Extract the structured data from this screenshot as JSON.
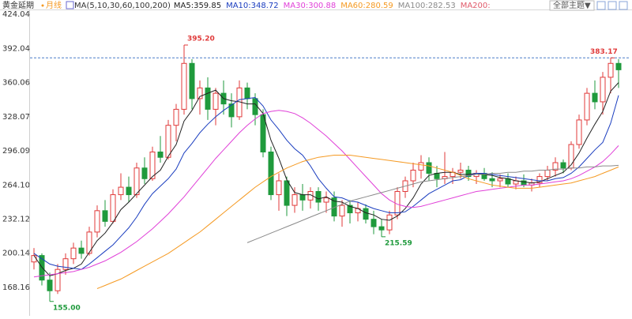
{
  "chart_data": {
    "type": "candlestick",
    "title": "黄金延期",
    "period": "月线",
    "ma_label": "MA(5,10,30,60,100,200)",
    "theme_button": "全部主题▼",
    "up_color": "#e03a3a",
    "down_color": "#1f9a3c",
    "ylim": [
      145.2,
      428.5
    ],
    "yticks": [
      424.04,
      392.04,
      360.06,
      328.07,
      296.09,
      {
        "value": 264.1,
        "label": "264.10"
      },
      232.12,
      200.14,
      168.16
    ],
    "grid": false,
    "open": [
      192,
      198,
      175,
      165,
      185,
      195,
      205,
      200,
      220,
      240,
      230,
      255,
      262,
      255,
      280,
      270,
      295,
      290,
      320,
      335,
      378,
      345,
      355,
      335,
      350,
      340,
      328,
      355,
      345,
      330,
      295,
      255,
      268,
      245,
      255,
      250,
      258,
      248,
      252,
      235,
      245,
      238,
      242,
      232,
      225,
      222,
      236,
      258,
      268,
      278,
      285,
      275,
      270,
      272,
      276,
      278,
      272,
      275,
      270,
      268,
      270,
      265,
      268,
      264,
      266,
      272,
      278,
      285,
      280,
      302,
      325,
      350,
      342,
      365,
      378
    ],
    "high": [
      205,
      200,
      182,
      190,
      200,
      210,
      212,
      225,
      245,
      250,
      260,
      275,
      272,
      285,
      290,
      300,
      310,
      325,
      340,
      395.2,
      382,
      362,
      365,
      355,
      362,
      350,
      362,
      360,
      350,
      335,
      300,
      275,
      272,
      262,
      265,
      262,
      262,
      258,
      258,
      250,
      250,
      248,
      246,
      240,
      232,
      240,
      262,
      272,
      285,
      292,
      290,
      282,
      295,
      280,
      285,
      282,
      278,
      280,
      276,
      274,
      275,
      272,
      274,
      270,
      275,
      282,
      290,
      288,
      305,
      330,
      355,
      362,
      370,
      383.17,
      382
    ],
    "low": [
      185,
      170,
      155,
      162,
      180,
      190,
      195,
      198,
      215,
      225,
      228,
      250,
      248,
      252,
      265,
      268,
      285,
      288,
      305,
      330,
      335,
      330,
      325,
      320,
      330,
      318,
      325,
      335,
      320,
      290,
      250,
      240,
      235,
      238,
      240,
      242,
      240,
      238,
      230,
      225,
      228,
      230,
      228,
      218,
      215.59,
      218,
      232,
      252,
      262,
      270,
      268,
      262,
      265,
      265,
      270,
      268,
      265,
      268,
      262,
      262,
      262,
      260,
      262,
      258,
      262,
      268,
      272,
      275,
      278,
      298,
      320,
      335,
      330,
      350,
      355
    ],
    "close": [
      198,
      175,
      165,
      185,
      195,
      205,
      200,
      220,
      240,
      230,
      255,
      262,
      255,
      280,
      270,
      295,
      290,
      320,
      335,
      378,
      345,
      355,
      335,
      350,
      340,
      328,
      355,
      345,
      330,
      295,
      255,
      268,
      245,
      255,
      250,
      258,
      248,
      252,
      235,
      245,
      238,
      242,
      232,
      225,
      222,
      236,
      258,
      268,
      278,
      285,
      275,
      270,
      272,
      276,
      278,
      272,
      275,
      270,
      268,
      270,
      265,
      268,
      264,
      266,
      272,
      278,
      285,
      280,
      302,
      325,
      350,
      342,
      365,
      378,
      372
    ],
    "series": [
      {
        "name": "MA5:359.85",
        "color": "#222222",
        "values": [
          198,
          187,
          179,
          181,
          184,
          186,
          190,
          201,
          212,
          219,
          229,
          241,
          248,
          256,
          264,
          272,
          278,
          291,
          302,
          324,
          334,
          347,
          350,
          353,
          345,
          343,
          342,
          340,
          340,
          331,
          306,
          289,
          269,
          257,
          255,
          255,
          251,
          253,
          249,
          248,
          244,
          242,
          238,
          236,
          232,
          231,
          235,
          242,
          252,
          265,
          273,
          275,
          276,
          276,
          274,
          274,
          275,
          274,
          273,
          271,
          270,
          268,
          267,
          266,
          267,
          270,
          273,
          276,
          283,
          294,
          308,
          321,
          333,
          352,
          360
        ]
      },
      {
        "name": "MA10:348.72",
        "color": "#1a3dbf",
        "values": [
          200,
          195,
          190,
          188,
          187,
          186,
          185,
          190,
          196,
          202,
          208,
          216,
          224,
          234,
          246,
          256,
          263,
          270,
          279,
          294,
          303,
          313,
          321,
          328,
          334,
          339,
          344,
          345,
          346,
          338,
          325,
          316,
          306,
          298,
          292,
          282,
          270,
          261,
          253,
          252,
          249,
          248,
          245,
          242,
          240,
          238,
          238,
          239,
          244,
          250,
          256,
          260,
          264,
          268,
          269,
          273,
          275,
          275,
          274,
          273,
          272,
          271,
          270,
          269,
          268,
          268,
          270,
          271,
          275,
          281,
          289,
          297,
          304,
          322,
          348
        ]
      },
      {
        "name": "MA30:300.88",
        "color": "#e040d8",
        "values": [
          178,
          179,
          180,
          181,
          182,
          183,
          185,
          187,
          190,
          193,
          197,
          201,
          206,
          211,
          217,
          223,
          230,
          237,
          245,
          253,
          262,
          271,
          280,
          289,
          297,
          305,
          313,
          320,
          326,
          331,
          333,
          334,
          333,
          331,
          327,
          322,
          316,
          310,
          303,
          296,
          288,
          280,
          272,
          264,
          256,
          250,
          246,
          244,
          243,
          244,
          246,
          248,
          250,
          252,
          254,
          256,
          258,
          259,
          260,
          261,
          262,
          263,
          264,
          264,
          265,
          266,
          267,
          268,
          270,
          273,
          277,
          281,
          286,
          293,
          301
        ]
      },
      {
        "name": "MA60:280.59",
        "color": "#f59a23",
        "values": [
          null,
          null,
          null,
          null,
          null,
          null,
          null,
          null,
          167,
          170,
          173,
          176,
          180,
          184,
          188,
          192,
          196,
          200,
          205,
          210,
          215,
          220,
          226,
          232,
          238,
          244,
          250,
          256,
          262,
          267,
          272,
          276,
          280,
          283,
          286,
          288,
          290,
          291,
          292,
          292,
          292,
          291,
          290,
          289,
          288,
          287,
          286,
          285,
          284,
          283,
          282,
          280,
          278,
          276,
          273,
          270,
          268,
          266,
          264,
          263,
          262,
          261,
          261,
          261,
          262,
          263,
          264,
          265,
          266,
          268,
          270,
          272,
          275,
          278,
          281
        ]
      },
      {
        "name": "MA100:282.53",
        "color": "#8a8a8a",
        "values": [
          null,
          null,
          null,
          null,
          null,
          null,
          null,
          null,
          null,
          null,
          null,
          null,
          null,
          null,
          null,
          null,
          null,
          null,
          null,
          null,
          null,
          null,
          null,
          null,
          null,
          null,
          null,
          210,
          213,
          216,
          219,
          222,
          225,
          228,
          231,
          234,
          237,
          240,
          243,
          246,
          249,
          251,
          253,
          255,
          257,
          259,
          261,
          263,
          265,
          267,
          268,
          269,
          270,
          271,
          272,
          273,
          274,
          274,
          275,
          275,
          276,
          276,
          277,
          277,
          278,
          278,
          279,
          279,
          280,
          280,
          281,
          281,
          282,
          282,
          282.5
        ]
      }
    ],
    "legend_extra": {
      "name": "MA200:",
      "color": "#e05a6a"
    },
    "annotations": [
      {
        "label": "395.20",
        "value": 395.2
      },
      {
        "label": "383.17",
        "value": 383.17,
        "reference_line": true
      },
      {
        "label": "215.59",
        "value": 215.59
      },
      {
        "label": "155.00",
        "value": 155
      }
    ]
  }
}
